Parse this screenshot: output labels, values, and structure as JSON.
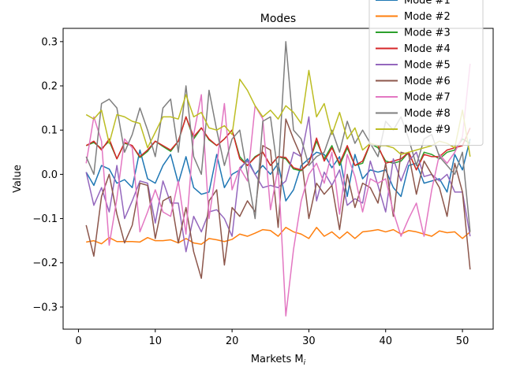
{
  "chart_data": {
    "type": "line",
    "title": "Modes",
    "xlabel": "Markets M",
    "xlabel_sub": "i",
    "ylabel": "Value",
    "xlim": [
      -2,
      54
    ],
    "ylim": [
      -0.35,
      0.33
    ],
    "xticks": [
      0,
      10,
      20,
      30,
      40,
      50
    ],
    "yticks": [
      -0.3,
      -0.2,
      -0.1,
      0.0,
      0.1,
      0.2,
      0.3
    ],
    "ytick_labels": [
      "−0.3",
      "−0.2",
      "−0.1",
      "0.0",
      "0.1",
      "0.2",
      "0.3"
    ],
    "grid": false,
    "legend_position": "top-right",
    "x": [
      1,
      2,
      3,
      4,
      5,
      6,
      7,
      8,
      9,
      10,
      11,
      12,
      13,
      14,
      15,
      16,
      17,
      18,
      19,
      20,
      21,
      22,
      23,
      24,
      25,
      26,
      27,
      28,
      29,
      30,
      31,
      32,
      33,
      34,
      35,
      36,
      37,
      38,
      39,
      40,
      41,
      42,
      43,
      44,
      45,
      46,
      47,
      48,
      49,
      50,
      51
    ],
    "series": [
      {
        "name": "Mode #1",
        "color": "#1f77b4",
        "values": [
          0.005,
          -0.025,
          0.02,
          0.012,
          -0.02,
          -0.012,
          -0.03,
          0.055,
          -0.01,
          -0.02,
          0.02,
          0.045,
          -0.02,
          0.04,
          -0.03,
          -0.045,
          -0.04,
          0.045,
          -0.03,
          0.0,
          0.01,
          0.035,
          0.0,
          0.02,
          0.0,
          0.025,
          -0.06,
          -0.035,
          0.02,
          0.035,
          0.05,
          0.045,
          0.015,
          0.04,
          -0.05,
          0.045,
          -0.01,
          0.01,
          0.005,
          0.01,
          -0.03,
          -0.05,
          0.02,
          0.025,
          -0.02,
          -0.015,
          -0.01,
          -0.04,
          0.045,
          0.01,
          0.08
        ]
      },
      {
        "name": "Mode #2",
        "color": "#ff7f0e",
        "values": [
          -0.153,
          -0.15,
          -0.157,
          -0.143,
          -0.152,
          -0.152,
          -0.152,
          -0.153,
          -0.143,
          -0.15,
          -0.15,
          -0.148,
          -0.155,
          -0.145,
          -0.155,
          -0.158,
          -0.145,
          -0.148,
          -0.152,
          -0.147,
          -0.135,
          -0.14,
          -0.133,
          -0.125,
          -0.127,
          -0.14,
          -0.12,
          -0.13,
          -0.135,
          -0.145,
          -0.12,
          -0.14,
          -0.13,
          -0.145,
          -0.13,
          -0.145,
          -0.13,
          -0.128,
          -0.125,
          -0.13,
          -0.125,
          -0.135,
          -0.127,
          -0.13,
          -0.135,
          -0.14,
          -0.128,
          -0.132,
          -0.13,
          -0.145,
          -0.13
        ]
      },
      {
        "name": "Mode #3",
        "color": "#2ca02c",
        "values": [
          0.065,
          0.072,
          0.058,
          0.075,
          0.035,
          0.07,
          0.065,
          0.038,
          0.052,
          0.075,
          0.063,
          0.052,
          0.075,
          0.13,
          0.08,
          0.105,
          0.078,
          0.065,
          0.08,
          0.1,
          0.04,
          0.02,
          0.04,
          0.05,
          0.02,
          0.04,
          0.035,
          0.012,
          0.008,
          0.025,
          0.075,
          0.035,
          0.065,
          0.02,
          0.06,
          0.02,
          0.025,
          0.07,
          0.06,
          0.03,
          0.025,
          0.03,
          0.05,
          0.01,
          0.05,
          0.045,
          0.035,
          0.05,
          0.055,
          0.08,
          0.07
        ]
      },
      {
        "name": "Mode #4",
        "color": "#d62728",
        "values": [
          0.065,
          0.075,
          0.055,
          0.08,
          0.035,
          0.072,
          0.065,
          0.04,
          0.055,
          0.075,
          0.065,
          0.055,
          0.075,
          0.13,
          0.085,
          0.105,
          0.08,
          0.065,
          0.08,
          0.1,
          0.035,
          0.02,
          0.038,
          0.05,
          0.02,
          0.04,
          0.038,
          0.015,
          0.01,
          0.025,
          0.082,
          0.03,
          0.06,
          0.025,
          0.065,
          0.02,
          0.03,
          0.07,
          0.065,
          0.025,
          0.03,
          0.035,
          0.05,
          0.01,
          0.045,
          0.04,
          0.04,
          0.055,
          0.06,
          0.065,
          0.105
        ]
      },
      {
        "name": "Mode #5",
        "color": "#9467bd",
        "values": [
          0.005,
          -0.07,
          -0.03,
          -0.085,
          0.02,
          -0.1,
          -0.06,
          -0.015,
          -0.02,
          -0.11,
          -0.015,
          -0.065,
          -0.065,
          -0.175,
          -0.095,
          -0.13,
          -0.085,
          -0.08,
          -0.1,
          -0.14,
          0.015,
          0.03,
          0.0,
          -0.03,
          -0.025,
          -0.03,
          -0.015,
          0.05,
          0.04,
          0.13,
          -0.06,
          0.005,
          -0.025,
          0.01,
          -0.07,
          -0.055,
          -0.065,
          0.03,
          -0.025,
          -0.085,
          0.035,
          -0.015,
          0.03,
          0.05,
          -0.005,
          0.0,
          -0.015,
          0.0,
          -0.04,
          -0.04,
          -0.14
        ]
      },
      {
        "name": "Mode #6",
        "color": "#8c564b",
        "values": [
          -0.115,
          -0.185,
          -0.05,
          0.0,
          -0.09,
          -0.155,
          -0.115,
          -0.02,
          -0.025,
          -0.145,
          -0.06,
          -0.05,
          -0.155,
          -0.075,
          -0.175,
          -0.235,
          -0.06,
          -0.035,
          -0.205,
          -0.075,
          -0.095,
          -0.06,
          -0.085,
          0.065,
          0.055,
          -0.12,
          0.125,
          0.08,
          0.04,
          -0.1,
          -0.02,
          -0.045,
          -0.025,
          -0.125,
          0.0,
          -0.075,
          -0.02,
          -0.03,
          -0.065,
          0.025,
          -0.095,
          0.05,
          0.045,
          -0.045,
          0.03,
          0.0,
          -0.03,
          -0.095,
          0.025,
          -0.04,
          -0.215
        ]
      },
      {
        "name": "Mode #7",
        "color": "#e377c2",
        "values": [
          0.025,
          0.13,
          0.075,
          -0.16,
          -0.055,
          0.08,
          0.06,
          -0.13,
          -0.085,
          -0.035,
          -0.085,
          -0.095,
          -0.015,
          -0.135,
          0.09,
          0.18,
          -0.1,
          0.02,
          0.16,
          -0.035,
          0.015,
          -0.015,
          0.155,
          0.125,
          -0.08,
          0.015,
          -0.32,
          -0.17,
          -0.06,
          0.0,
          0.025,
          -0.02,
          0.05,
          -0.09,
          0.045,
          -0.005,
          -0.085,
          -0.01,
          -0.02,
          -0.01,
          -0.085,
          -0.14,
          -0.1,
          -0.065,
          -0.14,
          -0.035,
          0.045,
          0.025,
          0.05,
          0.085,
          0.25
        ]
      },
      {
        "name": "Mode #8",
        "color": "#7f7f7f",
        "values": [
          0.04,
          0.0,
          0.16,
          0.17,
          0.15,
          0.05,
          0.09,
          0.15,
          0.1,
          0.04,
          0.15,
          0.17,
          0.05,
          0.2,
          0.04,
          0.0,
          0.19,
          0.1,
          0.02,
          0.08,
          0.1,
          0.0,
          -0.1,
          0.12,
          0.13,
          0.0,
          0.3,
          0.1,
          0.08,
          0.02,
          0.04,
          0.05,
          0.1,
          0.05,
          0.12,
          0.07,
          0.1,
          0.07,
          0.04,
          0.12,
          0.1,
          0.13,
          0.08,
          0.02,
          0.08,
          0.09,
          0.04,
          0.02,
          0.0,
          0.05,
          -0.13
        ]
      },
      {
        "name": "Mode #9",
        "color": "#bcbd22",
        "values": [
          0.135,
          0.125,
          0.145,
          0.07,
          0.135,
          0.13,
          0.12,
          0.115,
          0.06,
          0.095,
          0.13,
          0.13,
          0.125,
          0.18,
          0.13,
          0.14,
          0.105,
          0.1,
          0.11,
          0.09,
          0.215,
          0.19,
          0.155,
          0.13,
          0.145,
          0.125,
          0.155,
          0.14,
          0.115,
          0.235,
          0.13,
          0.16,
          0.09,
          0.14,
          0.08,
          0.105,
          0.055,
          0.07,
          0.065,
          0.065,
          0.06,
          0.045,
          0.05,
          0.055,
          0.06,
          0.065,
          0.075,
          0.07,
          0.06,
          0.145,
          0.04
        ]
      }
    ]
  }
}
